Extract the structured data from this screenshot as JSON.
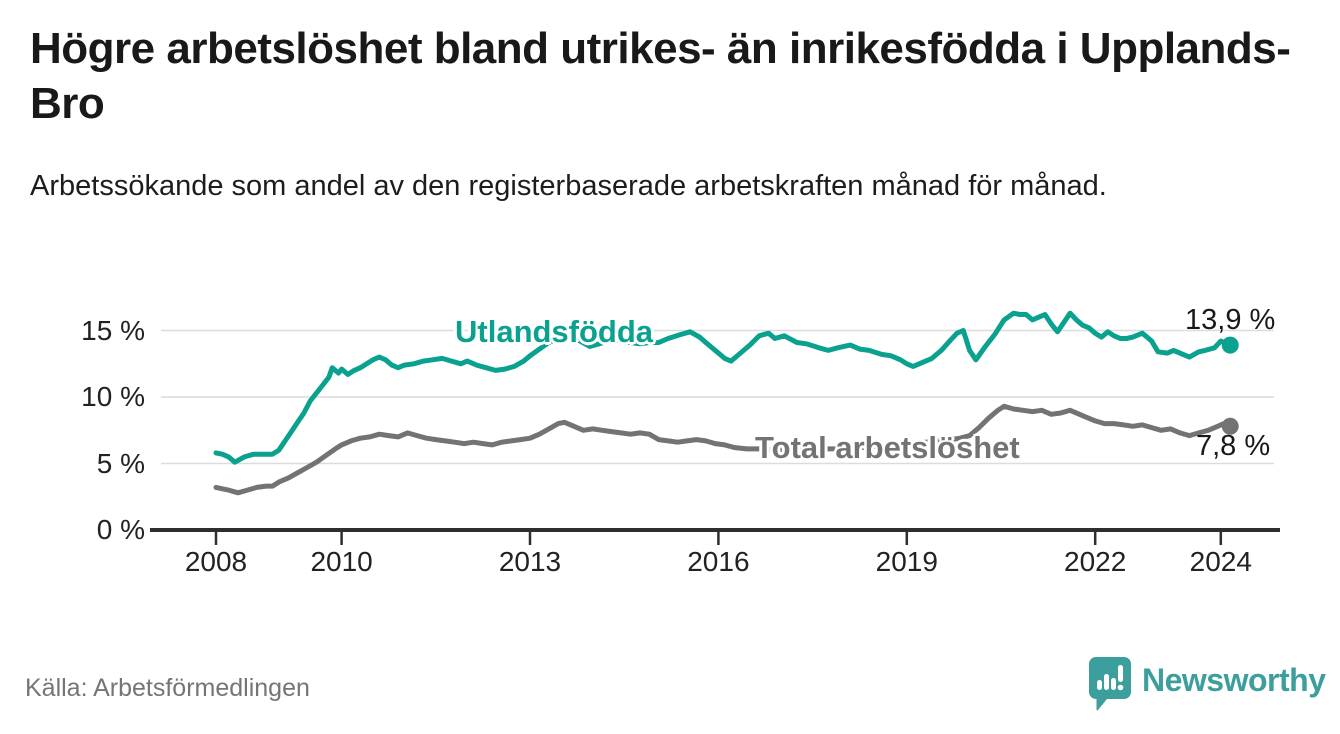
{
  "header": {
    "title": "Högre arbetslöshet bland utrikes- än inrikesfödda i Upplands-Bro",
    "subtitle": "Arbetssökande som andel av den registerbaserade arbetskraften månad för månad."
  },
  "footer": {
    "source": "Källa: Arbetsförmedlingen",
    "logo_text": "Newsworthy"
  },
  "colors": {
    "accent_teal": "#0ba18f",
    "series_gray": "#737373",
    "logo_teal": "#3d9f9d",
    "grid": "#dcdcdc",
    "axis": "#2e2e2e",
    "text_dark": "#191919",
    "muted_text": "#757575",
    "background": "#ffffff"
  },
  "chart_data": {
    "type": "line",
    "title": "Högre arbetslöshet bland utrikes- än inrikesfödda i Upplands-Bro",
    "subtitle": "Arbetssökande som andel av den registerbaserade arbetskraften månad för månad.",
    "unit": "%",
    "grid": "horizontal",
    "legend_position": "inline-labels",
    "x_axis": {
      "ticks": [
        2008,
        2010,
        2013,
        2016,
        2019,
        2022,
        2024
      ],
      "range": [
        2007.8,
        2024.9
      ]
    },
    "y_axis": {
      "ticks": [
        0,
        5,
        10,
        15
      ],
      "tick_suffix": " %",
      "range": [
        0,
        17
      ]
    },
    "series": [
      {
        "name": "Utlandsfödda",
        "color": "#0ba18f",
        "end_label": "13,9 %",
        "end_value": 13.9,
        "points": [
          [
            2008.0,
            5.8
          ],
          [
            2008.1,
            5.7
          ],
          [
            2008.2,
            5.5
          ],
          [
            2008.3,
            5.1
          ],
          [
            2008.45,
            5.5
          ],
          [
            2008.6,
            5.7
          ],
          [
            2008.75,
            5.7
          ],
          [
            2008.9,
            5.7
          ],
          [
            2009.0,
            6.0
          ],
          [
            2009.1,
            6.7
          ],
          [
            2009.2,
            7.4
          ],
          [
            2009.3,
            8.1
          ],
          [
            2009.4,
            8.8
          ],
          [
            2009.5,
            9.7
          ],
          [
            2009.6,
            10.3
          ],
          [
            2009.7,
            10.9
          ],
          [
            2009.8,
            11.5
          ],
          [
            2009.85,
            12.2
          ],
          [
            2009.95,
            11.8
          ],
          [
            2010.0,
            12.1
          ],
          [
            2010.1,
            11.7
          ],
          [
            2010.2,
            12.0
          ],
          [
            2010.3,
            12.2
          ],
          [
            2010.4,
            12.5
          ],
          [
            2010.5,
            12.8
          ],
          [
            2010.6,
            13.0
          ],
          [
            2010.7,
            12.8
          ],
          [
            2010.8,
            12.4
          ],
          [
            2010.9,
            12.2
          ],
          [
            2011.0,
            12.4
          ],
          [
            2011.15,
            12.5
          ],
          [
            2011.3,
            12.7
          ],
          [
            2011.45,
            12.8
          ],
          [
            2011.6,
            12.9
          ],
          [
            2011.75,
            12.7
          ],
          [
            2011.9,
            12.5
          ],
          [
            2012.0,
            12.7
          ],
          [
            2012.15,
            12.4
          ],
          [
            2012.3,
            12.2
          ],
          [
            2012.45,
            12.0
          ],
          [
            2012.6,
            12.1
          ],
          [
            2012.75,
            12.3
          ],
          [
            2012.9,
            12.7
          ],
          [
            2013.0,
            13.1
          ],
          [
            2013.15,
            13.6
          ],
          [
            2013.3,
            14.1
          ],
          [
            2013.45,
            14.4
          ],
          [
            2013.6,
            14.5
          ],
          [
            2013.8,
            14.2
          ],
          [
            2013.95,
            13.8
          ],
          [
            2014.1,
            14.0
          ],
          [
            2014.25,
            14.2
          ],
          [
            2014.4,
            14.3
          ],
          [
            2014.6,
            14.1
          ],
          [
            2014.75,
            14.0
          ],
          [
            2014.9,
            14.1
          ],
          [
            2015.05,
            14.1
          ],
          [
            2015.2,
            14.4
          ],
          [
            2015.4,
            14.7
          ],
          [
            2015.55,
            14.9
          ],
          [
            2015.7,
            14.5
          ],
          [
            2015.8,
            14.1
          ],
          [
            2015.95,
            13.5
          ],
          [
            2016.1,
            12.9
          ],
          [
            2016.2,
            12.7
          ],
          [
            2016.35,
            13.3
          ],
          [
            2016.5,
            13.9
          ],
          [
            2016.65,
            14.6
          ],
          [
            2016.8,
            14.8
          ],
          [
            2016.9,
            14.4
          ],
          [
            2017.05,
            14.6
          ],
          [
            2017.25,
            14.1
          ],
          [
            2017.4,
            14.0
          ],
          [
            2017.6,
            13.7
          ],
          [
            2017.75,
            13.5
          ],
          [
            2017.9,
            13.7
          ],
          [
            2018.1,
            13.9
          ],
          [
            2018.25,
            13.6
          ],
          [
            2018.4,
            13.5
          ],
          [
            2018.6,
            13.2
          ],
          [
            2018.75,
            13.1
          ],
          [
            2018.9,
            12.8
          ],
          [
            2019.0,
            12.5
          ],
          [
            2019.1,
            12.3
          ],
          [
            2019.25,
            12.6
          ],
          [
            2019.4,
            12.9
          ],
          [
            2019.55,
            13.5
          ],
          [
            2019.7,
            14.3
          ],
          [
            2019.8,
            14.8
          ],
          [
            2019.9,
            15.0
          ],
          [
            2020.0,
            13.5
          ],
          [
            2020.1,
            12.8
          ],
          [
            2020.25,
            13.8
          ],
          [
            2020.4,
            14.7
          ],
          [
            2020.55,
            15.8
          ],
          [
            2020.7,
            16.3
          ],
          [
            2020.8,
            16.2
          ],
          [
            2020.9,
            16.2
          ],
          [
            2021.0,
            15.8
          ],
          [
            2021.1,
            16.0
          ],
          [
            2021.2,
            16.2
          ],
          [
            2021.3,
            15.5
          ],
          [
            2021.4,
            14.9
          ],
          [
            2021.5,
            15.6
          ],
          [
            2021.6,
            16.3
          ],
          [
            2021.7,
            15.8
          ],
          [
            2021.8,
            15.4
          ],
          [
            2021.9,
            15.2
          ],
          [
            2022.0,
            14.8
          ],
          [
            2022.1,
            14.5
          ],
          [
            2022.2,
            14.9
          ],
          [
            2022.3,
            14.6
          ],
          [
            2022.4,
            14.4
          ],
          [
            2022.5,
            14.4
          ],
          [
            2022.6,
            14.5
          ],
          [
            2022.75,
            14.8
          ],
          [
            2022.9,
            14.2
          ],
          [
            2023.0,
            13.4
          ],
          [
            2023.15,
            13.3
          ],
          [
            2023.25,
            13.5
          ],
          [
            2023.4,
            13.2
          ],
          [
            2023.5,
            13.0
          ],
          [
            2023.65,
            13.4
          ],
          [
            2023.75,
            13.5
          ],
          [
            2023.9,
            13.7
          ],
          [
            2024.0,
            14.2
          ],
          [
            2024.15,
            13.9
          ]
        ]
      },
      {
        "name": "Total arbetslöshet",
        "color": "#737373",
        "end_label": "7,8 %",
        "end_value": 7.8,
        "points": [
          [
            2008.0,
            3.2
          ],
          [
            2008.1,
            3.1
          ],
          [
            2008.2,
            3.0
          ],
          [
            2008.35,
            2.8
          ],
          [
            2008.5,
            3.0
          ],
          [
            2008.65,
            3.2
          ],
          [
            2008.8,
            3.3
          ],
          [
            2008.9,
            3.3
          ],
          [
            2009.0,
            3.6
          ],
          [
            2009.15,
            3.9
          ],
          [
            2009.3,
            4.3
          ],
          [
            2009.45,
            4.7
          ],
          [
            2009.6,
            5.1
          ],
          [
            2009.75,
            5.6
          ],
          [
            2009.9,
            6.1
          ],
          [
            2010.0,
            6.4
          ],
          [
            2010.15,
            6.7
          ],
          [
            2010.3,
            6.9
          ],
          [
            2010.45,
            7.0
          ],
          [
            2010.6,
            7.2
          ],
          [
            2010.75,
            7.1
          ],
          [
            2010.9,
            7.0
          ],
          [
            2011.05,
            7.3
          ],
          [
            2011.2,
            7.1
          ],
          [
            2011.35,
            6.9
          ],
          [
            2011.5,
            6.8
          ],
          [
            2011.65,
            6.7
          ],
          [
            2011.8,
            6.6
          ],
          [
            2011.95,
            6.5
          ],
          [
            2012.1,
            6.6
          ],
          [
            2012.25,
            6.5
          ],
          [
            2012.4,
            6.4
          ],
          [
            2012.55,
            6.6
          ],
          [
            2012.7,
            6.7
          ],
          [
            2012.85,
            6.8
          ],
          [
            2013.0,
            6.9
          ],
          [
            2013.15,
            7.2
          ],
          [
            2013.3,
            7.6
          ],
          [
            2013.45,
            8.0
          ],
          [
            2013.55,
            8.1
          ],
          [
            2013.7,
            7.8
          ],
          [
            2013.85,
            7.5
          ],
          [
            2014.0,
            7.6
          ],
          [
            2014.15,
            7.5
          ],
          [
            2014.3,
            7.4
          ],
          [
            2014.45,
            7.3
          ],
          [
            2014.6,
            7.2
          ],
          [
            2014.75,
            7.3
          ],
          [
            2014.9,
            7.2
          ],
          [
            2015.05,
            6.8
          ],
          [
            2015.2,
            6.7
          ],
          [
            2015.35,
            6.6
          ],
          [
            2015.5,
            6.7
          ],
          [
            2015.65,
            6.8
          ],
          [
            2015.8,
            6.7
          ],
          [
            2015.95,
            6.5
          ],
          [
            2016.1,
            6.4
          ],
          [
            2016.25,
            6.2
          ],
          [
            2016.45,
            6.1
          ],
          [
            2016.7,
            6.1
          ],
          [
            2016.9,
            6.0
          ],
          [
            2017.1,
            6.1
          ],
          [
            2017.3,
            6.0
          ],
          [
            2017.5,
            6.0
          ],
          [
            2017.7,
            6.1
          ],
          [
            2017.9,
            6.1
          ],
          [
            2018.1,
            6.2
          ],
          [
            2018.3,
            6.2
          ],
          [
            2018.5,
            6.3
          ],
          [
            2018.7,
            6.3
          ],
          [
            2018.9,
            6.4
          ],
          [
            2019.1,
            6.5
          ],
          [
            2019.3,
            6.6
          ],
          [
            2019.5,
            6.7
          ],
          [
            2019.7,
            6.8
          ],
          [
            2019.85,
            6.9
          ],
          [
            2020.0,
            7.1
          ],
          [
            2020.15,
            7.7
          ],
          [
            2020.3,
            8.4
          ],
          [
            2020.45,
            9.0
          ],
          [
            2020.55,
            9.3
          ],
          [
            2020.7,
            9.1
          ],
          [
            2020.85,
            9.0
          ],
          [
            2021.0,
            8.9
          ],
          [
            2021.15,
            9.0
          ],
          [
            2021.3,
            8.7
          ],
          [
            2021.45,
            8.8
          ],
          [
            2021.6,
            9.0
          ],
          [
            2021.75,
            8.7
          ],
          [
            2021.9,
            8.4
          ],
          [
            2022.0,
            8.2
          ],
          [
            2022.15,
            8.0
          ],
          [
            2022.3,
            8.0
          ],
          [
            2022.45,
            7.9
          ],
          [
            2022.6,
            7.8
          ],
          [
            2022.75,
            7.9
          ],
          [
            2022.9,
            7.7
          ],
          [
            2023.05,
            7.5
          ],
          [
            2023.2,
            7.6
          ],
          [
            2023.35,
            7.3
          ],
          [
            2023.5,
            7.1
          ],
          [
            2023.65,
            7.3
          ],
          [
            2023.8,
            7.5
          ],
          [
            2023.95,
            7.8
          ],
          [
            2024.05,
            8.0
          ],
          [
            2024.15,
            7.8
          ]
        ]
      }
    ]
  }
}
